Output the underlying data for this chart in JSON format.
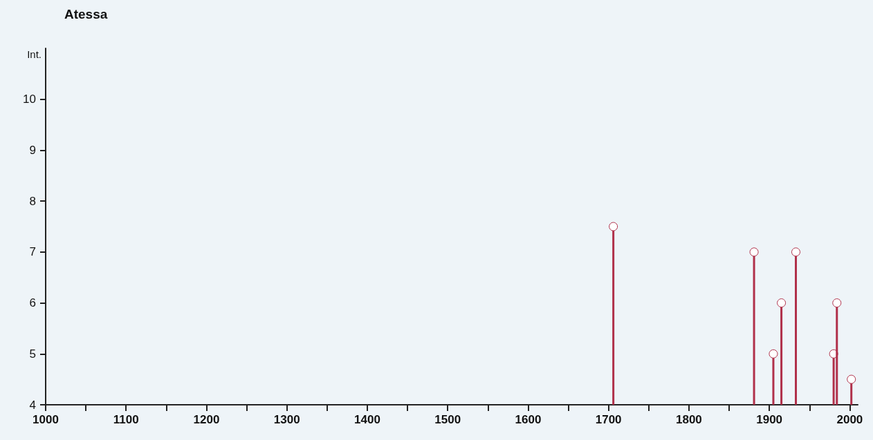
{
  "chart_data": {
    "type": "lollipop",
    "title": "Atessa",
    "ylabel": "Int.",
    "x": [
      1706,
      1881,
      1905,
      1915,
      1933,
      1980,
      1984,
      2002
    ],
    "values": [
      7.5,
      7,
      5,
      6,
      7,
      5,
      6,
      4.5
    ],
    "color": "#b0304a",
    "marker": "circle",
    "xlim": [
      1000,
      2010
    ],
    "xticks": [
      1000,
      {
        "value": 1050,
        "label": null
      },
      1100,
      {
        "value": 1150,
        "label": null
      },
      1200,
      {
        "value": 1250,
        "label": null
      },
      1300,
      {
        "value": 1350,
        "label": null
      },
      1400,
      {
        "value": 1450,
        "label": null
      },
      1500,
      {
        "value": 1550,
        "label": null
      },
      1600,
      {
        "value": 1650,
        "label": null
      },
      1700,
      {
        "value": 1750,
        "label": null
      },
      1800,
      {
        "value": 1850,
        "label": null
      },
      1900,
      {
        "value": 1950,
        "label": null
      },
      2000
    ],
    "ylim": [
      4,
      11
    ],
    "yticks": [
      4,
      5,
      6,
      7,
      8,
      9,
      10
    ],
    "grid": false
  }
}
